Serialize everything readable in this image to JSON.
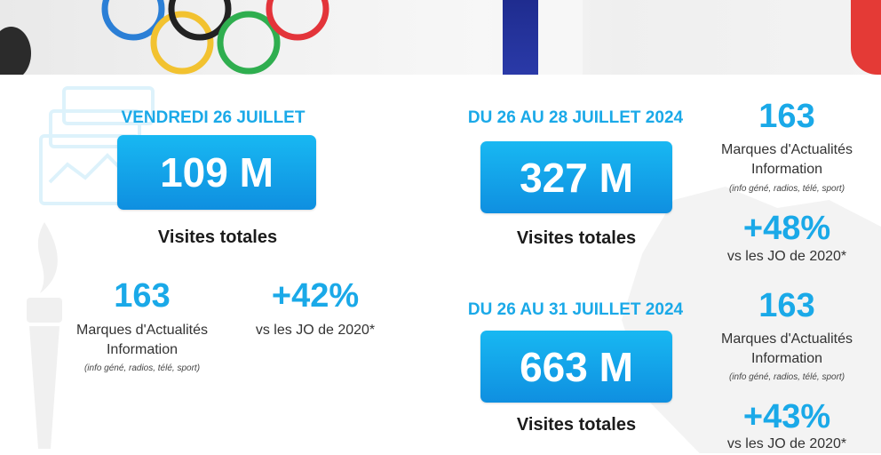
{
  "colors": {
    "accent": "#1aa9e8",
    "box_gradient_top": "#18b8f2",
    "box_gradient_bottom": "#0f8fe0"
  },
  "banner": {
    "image": "olympic-rings-and-french-flag-photo"
  },
  "left": {
    "date": "VENDREDI 26 JUILLET",
    "visits": "109 M",
    "visits_label": "Visites totales",
    "brands_count": "163",
    "brands_label": "Marques d'Actualités Information",
    "brands_note": "(info géné, radios, télé, sport)",
    "growth": "+42%",
    "growth_label": "vs les JO de 2020*"
  },
  "period1": {
    "date": "DU 26 AU 28 JUILLET 2024",
    "visits": "327 M",
    "visits_label": "Visites totales",
    "brands_count": "163",
    "brands_label": "Marques d'Actualités Information",
    "brands_note": "(info géné, radios, télé, sport)",
    "growth": "+48%",
    "growth_label": "vs les JO de 2020*"
  },
  "period2": {
    "date": "DU 26 AU 31 JUILLET 2024",
    "visits": "663 M",
    "visits_label": "Visites totales",
    "brands_count": "163",
    "brands_label": "Marques d'Actualités Information",
    "brands_note": "(info géné, radios, télé, sport)",
    "growth": "+43%",
    "growth_label": "vs les JO de 2020*"
  }
}
